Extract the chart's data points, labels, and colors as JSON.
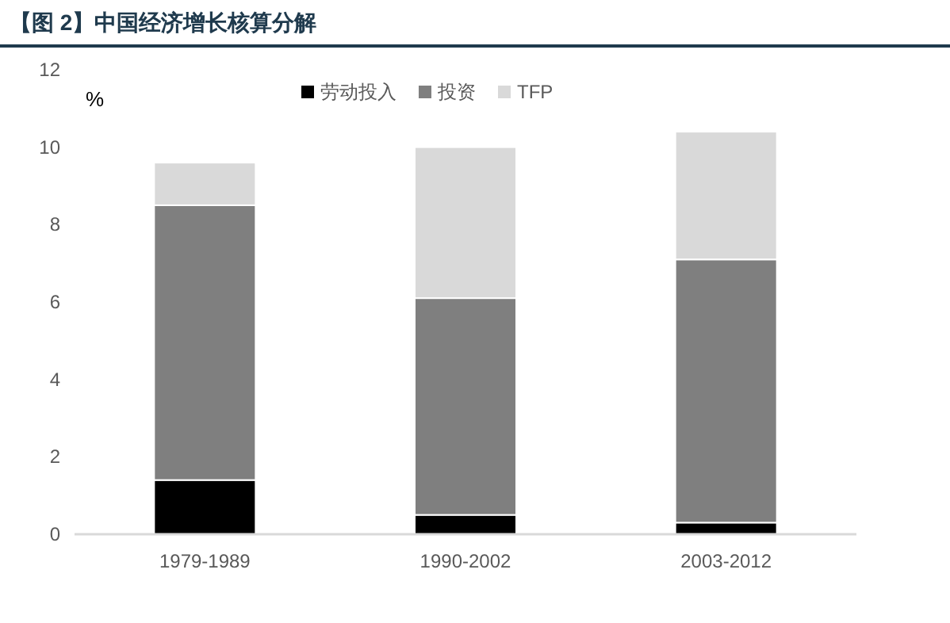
{
  "chart_data": {
    "type": "bar",
    "title": "【图 2】中国经济增长核算分解",
    "ylabel": "%",
    "categories": [
      "1979-1989",
      "1990-2002",
      "2003-2012"
    ],
    "stacked": true,
    "series": [
      {
        "name": "劳动投入",
        "color": "#000000",
        "values": [
          1.4,
          0.5,
          0.3
        ]
      },
      {
        "name": "投资",
        "color": "#7f7f7f",
        "values": [
          7.1,
          5.6,
          6.8
        ]
      },
      {
        "name": "TFP",
        "color": "#d9d9d9",
        "values": [
          1.1,
          3.9,
          3.3
        ]
      }
    ],
    "ylim": [
      0,
      12
    ],
    "yticks": [
      0,
      2,
      4,
      6,
      8,
      10,
      12
    ],
    "legend": "top"
  }
}
